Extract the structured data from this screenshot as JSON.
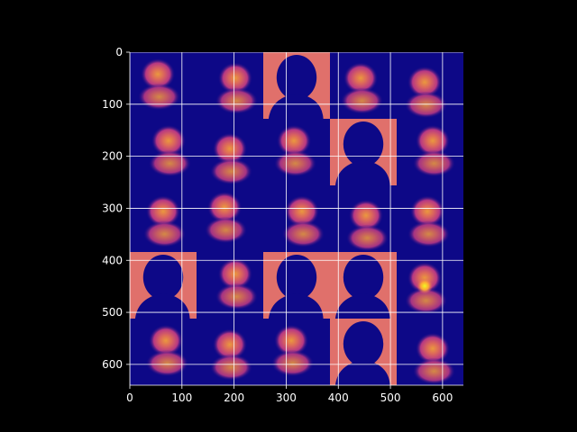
{
  "chart_data": {
    "type": "heatmap",
    "title": "",
    "xlabel": "",
    "ylabel": "",
    "xlim": [
      0,
      640
    ],
    "ylim": [
      640,
      0
    ],
    "y_axis_inverted": true,
    "grid": true,
    "grid_color": "#ffffff",
    "colormap": "plasma",
    "x_ticks": [
      0,
      100,
      200,
      300,
      400,
      500,
      600
    ],
    "y_ticks": [
      0,
      100,
      200,
      300,
      400,
      500,
      600
    ],
    "x_tick_labels": [
      "0",
      "100",
      "200",
      "300",
      "400",
      "500",
      "600"
    ],
    "y_tick_labels": [
      "0",
      "100",
      "200",
      "300",
      "400",
      "500",
      "600"
    ],
    "grid_layout": {
      "rows": 5,
      "cols": 5,
      "tile_size": 128
    },
    "tiles": [
      {
        "row": 0,
        "col": 0,
        "kind": "blob"
      },
      {
        "row": 0,
        "col": 1,
        "kind": "blob"
      },
      {
        "row": 0,
        "col": 2,
        "kind": "silhouette"
      },
      {
        "row": 0,
        "col": 3,
        "kind": "blob"
      },
      {
        "row": 0,
        "col": 4,
        "kind": "blob"
      },
      {
        "row": 1,
        "col": 0,
        "kind": "blob"
      },
      {
        "row": 1,
        "col": 1,
        "kind": "blob"
      },
      {
        "row": 1,
        "col": 2,
        "kind": "blob"
      },
      {
        "row": 1,
        "col": 3,
        "kind": "silhouette"
      },
      {
        "row": 1,
        "col": 4,
        "kind": "blob"
      },
      {
        "row": 2,
        "col": 0,
        "kind": "blob"
      },
      {
        "row": 2,
        "col": 1,
        "kind": "blob"
      },
      {
        "row": 2,
        "col": 2,
        "kind": "blob"
      },
      {
        "row": 2,
        "col": 3,
        "kind": "blob"
      },
      {
        "row": 2,
        "col": 4,
        "kind": "blob"
      },
      {
        "row": 3,
        "col": 0,
        "kind": "silhouette"
      },
      {
        "row": 3,
        "col": 1,
        "kind": "blob"
      },
      {
        "row": 3,
        "col": 2,
        "kind": "silhouette"
      },
      {
        "row": 3,
        "col": 3,
        "kind": "silhouette"
      },
      {
        "row": 3,
        "col": 4,
        "kind": "blob"
      },
      {
        "row": 4,
        "col": 0,
        "kind": "blob"
      },
      {
        "row": 4,
        "col": 1,
        "kind": "blob"
      },
      {
        "row": 4,
        "col": 2,
        "kind": "blob"
      },
      {
        "row": 4,
        "col": 3,
        "kind": "silhouette"
      },
      {
        "row": 4,
        "col": 4,
        "kind": "blob"
      }
    ]
  }
}
